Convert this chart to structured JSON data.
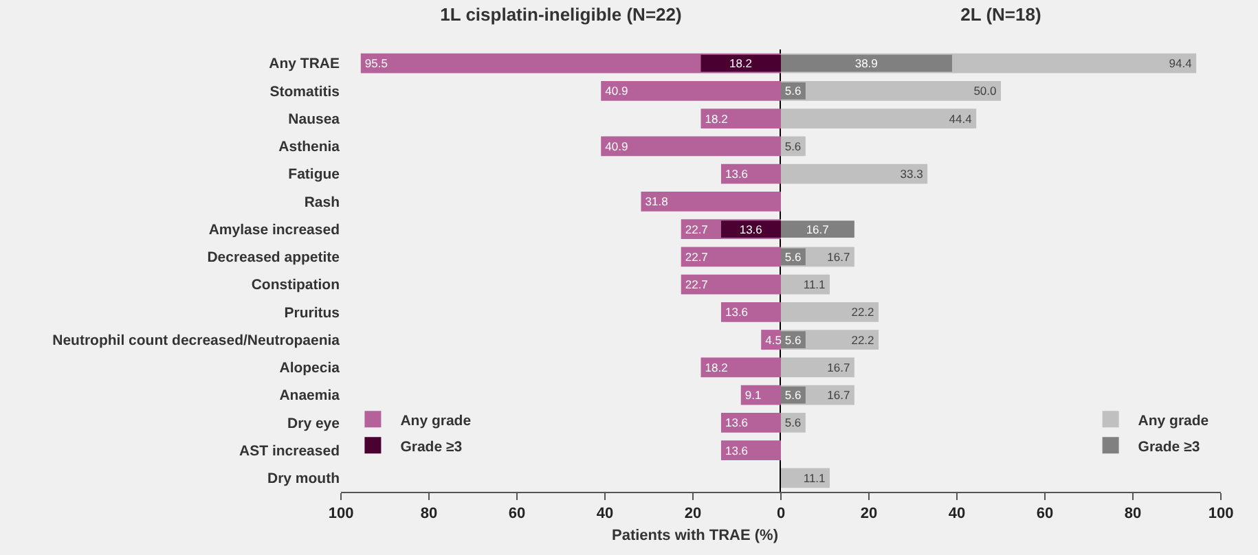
{
  "chart_data": [
    {
      "type": "bar",
      "orientation": "horizontal",
      "title": "1L cisplatin-ineligible (N=22)",
      "xlabel": "Patients with TRAE (%)",
      "categories": [
        "Any TRAE",
        "Stomatitis",
        "Nausea",
        "Asthenia",
        "Fatigue",
        "Rash",
        "Amylase increased",
        "Decreased appetite",
        "Constipation",
        "Pruritus",
        "Neutrophil count decreased/Neutropaenia",
        "Alopecia",
        "Anaemia",
        "Dry eye",
        "AST increased",
        "Dry mouth"
      ],
      "series": [
        {
          "name": "Any grade",
          "color": "#b5629a",
          "values": [
            95.5,
            40.9,
            18.2,
            40.9,
            13.6,
            31.8,
            22.7,
            22.7,
            22.7,
            13.6,
            4.5,
            18.2,
            9.1,
            13.6,
            13.6,
            null
          ],
          "value_labels": [
            "95.5",
            "40.9",
            "18.2",
            "40.9",
            "13.6",
            "31.8",
            "22.7",
            "22.7",
            "22.7",
            "13.6",
            "4.5",
            "18.2",
            "9.1",
            "13.6",
            "13.6",
            null
          ]
        },
        {
          "name": "Grade ≥3",
          "color": "#4a0030",
          "values": [
            18.2,
            null,
            null,
            null,
            null,
            null,
            13.6,
            null,
            null,
            null,
            null,
            null,
            null,
            null,
            null,
            null
          ],
          "value_labels": [
            "18.2",
            null,
            null,
            null,
            null,
            null,
            "13.6",
            null,
            null,
            null,
            null,
            null,
            null,
            null,
            null,
            null
          ]
        }
      ],
      "xlim": [
        100,
        0
      ],
      "xticks": [
        100,
        80,
        60,
        40,
        20
      ],
      "legend": "bottom left"
    },
    {
      "type": "bar",
      "orientation": "horizontal",
      "title": "2L (N=18)",
      "categories": [
        null,
        null,
        null,
        null,
        null,
        null,
        null,
        null,
        null,
        null,
        null,
        null,
        null,
        null,
        null,
        null
      ],
      "series": [
        {
          "name": "Any grade",
          "color": "#c0c0c0",
          "values": [
            94.4,
            50.0,
            44.4,
            5.6,
            33.3,
            null,
            null,
            16.7,
            11.1,
            22.2,
            22.2,
            16.7,
            16.7,
            5.6,
            null,
            11.1
          ],
          "value_labels": [
            "94.4",
            "50.0",
            "44.4",
            "5.6",
            "33.3",
            null,
            null,
            "16.7",
            "11.1",
            "22.2",
            "22.2",
            "16.7",
            "16.7",
            "5.6",
            null,
            "11.1"
          ]
        },
        {
          "name": "Grade ≥3",
          "color": "#808080",
          "values": [
            38.9,
            5.6,
            null,
            null,
            null,
            null,
            16.7,
            5.6,
            null,
            null,
            5.6,
            null,
            5.6,
            null,
            null,
            null
          ],
          "value_labels": [
            "38.9",
            "5.6",
            null,
            null,
            null,
            null,
            "16.7",
            "5.6",
            null,
            null,
            "5.6",
            null,
            "5.6",
            null,
            null,
            null
          ]
        }
      ],
      "xlim": [
        0,
        100
      ],
      "xticks": [
        0,
        20,
        40,
        60,
        80,
        100
      ],
      "legend": "bottom right"
    }
  ]
}
